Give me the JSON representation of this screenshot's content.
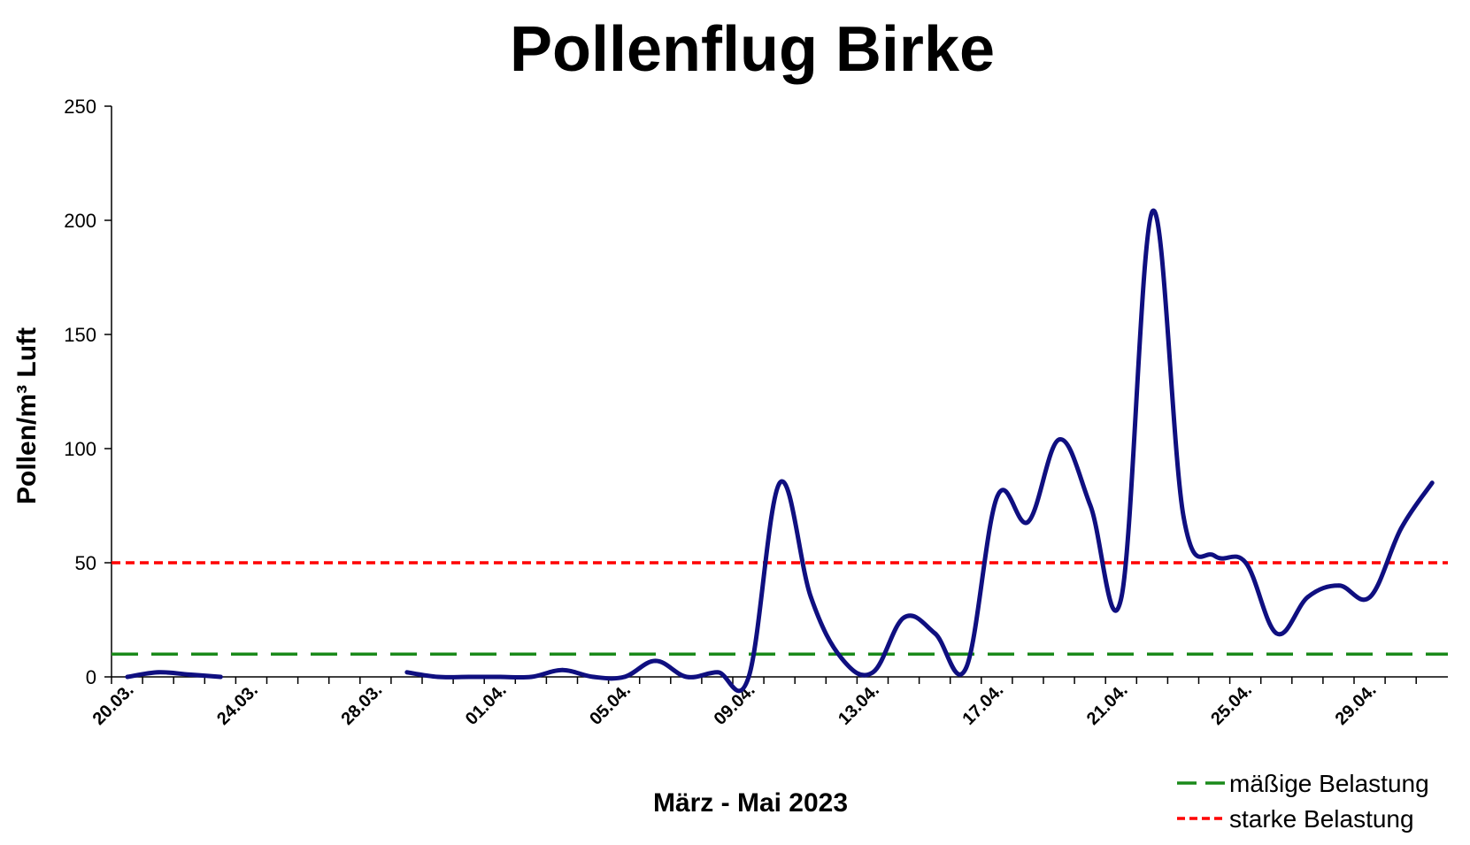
{
  "chart_data": {
    "type": "line",
    "title": "Pollenflug Birke",
    "xlabel": "März - Mai 2023",
    "ylabel": "Pollen/m³ Luft",
    "ylim": [
      0,
      250
    ],
    "yticks": [
      0,
      50,
      100,
      150,
      200,
      250
    ],
    "x_start_day": "20.03.",
    "x_end_day": "01.05.",
    "xtick_labels": [
      "20.03.",
      "24.03.",
      "28.03.",
      "01.04.",
      "05.04.",
      "09.04.",
      "13.04.",
      "17.04.",
      "21.04.",
      "25.04.",
      "29.04."
    ],
    "grid": false,
    "legend_position": "bottom-right",
    "series": [
      {
        "color": "#0f0f80",
        "x": [
          "20.03.",
          "21.03.",
          "22.03.",
          "23.03.",
          "24.03.",
          "25.03.",
          "26.03.",
          "27.03.",
          "28.03.",
          "29.03.",
          "30.03.",
          "31.03.",
          "01.04.",
          "02.04.",
          "03.04.",
          "04.04.",
          "05.04.",
          "06.04.",
          "07.04.",
          "08.04.",
          "09.04.",
          "10.04.",
          "11.04.",
          "12.04.",
          "13.04.",
          "14.04.",
          "15.04.",
          "16.04.",
          "17.04.",
          "18.04.",
          "19.04.",
          "20.04.",
          "21.04.",
          "22.04.",
          "23.04.",
          "24.04.",
          "25.04.",
          "26.04.",
          "27.04.",
          "28.04.",
          "29.04.",
          "30.04.",
          "01.05."
        ],
        "values": [
          0,
          2,
          1,
          0,
          null,
          null,
          null,
          null,
          null,
          2,
          0,
          0,
          0,
          0,
          3,
          0,
          0,
          7,
          0,
          2,
          0,
          85,
          35,
          8,
          2,
          26,
          19,
          4,
          79,
          68,
          104,
          75,
          35,
          204,
          70,
          53,
          50,
          19,
          35,
          40,
          35,
          65,
          85
        ]
      }
    ],
    "reference_lines": [
      {
        "name": "mäßige Belastung",
        "value": 10,
        "color": "#1a8a1a",
        "style": "dashed"
      },
      {
        "name": "starke Belastung",
        "value": 50,
        "color": "#ff0000",
        "style": "dotted"
      }
    ]
  }
}
